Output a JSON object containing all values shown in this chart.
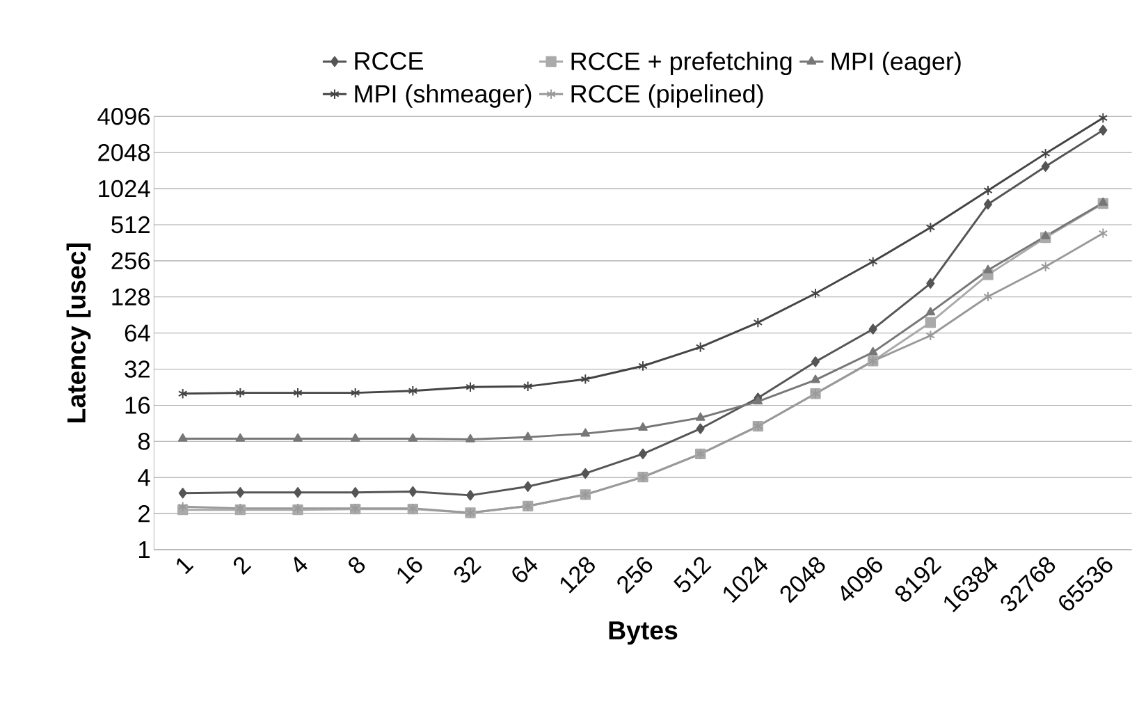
{
  "chart_data": {
    "type": "line",
    "xlabel": "Bytes",
    "ylabel": "Latency  [usec]",
    "categories": [
      "1",
      "2",
      "4",
      "8",
      "16",
      "32",
      "64",
      "128",
      "256",
      "512",
      "1024",
      "2048",
      "4096",
      "8192",
      "16384",
      "32768",
      "65536"
    ],
    "log": "y",
    "ylim": [
      1,
      4096
    ],
    "yticks": [
      1,
      2,
      4,
      8,
      16,
      32,
      64,
      128,
      256,
      512,
      1024,
      2048,
      4096
    ],
    "grid": "y",
    "legend": "top",
    "series": [
      {
        "name": "RCCE",
        "color": "#555555",
        "marker": "diamond",
        "values": [
          2.96,
          3.0,
          3.0,
          3.0,
          3.05,
          2.84,
          3.36,
          4.32,
          6.29,
          10.2,
          18.4,
          36.9,
          69,
          166,
          759,
          1566,
          3144
        ]
      },
      {
        "name": "RCCE + prefetching",
        "color": "#aaaaaa",
        "marker": "square",
        "values": [
          2.15,
          2.15,
          2.15,
          2.18,
          2.18,
          2.03,
          2.31,
          2.88,
          4.03,
          6.29,
          10.7,
          20,
          37.4,
          78.4,
          196,
          400,
          770
        ]
      },
      {
        "name": "MPI (eager)",
        "color": "#777777",
        "marker": "triangle",
        "values": [
          8.43,
          8.43,
          8.43,
          8.43,
          8.43,
          8.31,
          8.67,
          9.29,
          10.4,
          12.6,
          17.2,
          26,
          44.2,
          95.2,
          214,
          411,
          780
        ]
      },
      {
        "name": "MPI (shmeager)",
        "color": "#444444",
        "marker": "cross",
        "values": [
          20,
          20.3,
          20.3,
          20.3,
          21.1,
          22.7,
          23,
          26.4,
          34,
          48.8,
          78.3,
          137,
          252,
          486,
          989,
          2010,
          3980
        ]
      },
      {
        "name": "RCCE (pipelined)",
        "color": "#999999",
        "marker": "cross",
        "values": [
          2.28,
          2.21,
          2.21,
          2.21,
          2.21,
          2.03,
          2.31,
          2.88,
          4.03,
          6.29,
          10.7,
          20,
          37.4,
          61,
          129,
          229,
          435
        ]
      }
    ]
  }
}
